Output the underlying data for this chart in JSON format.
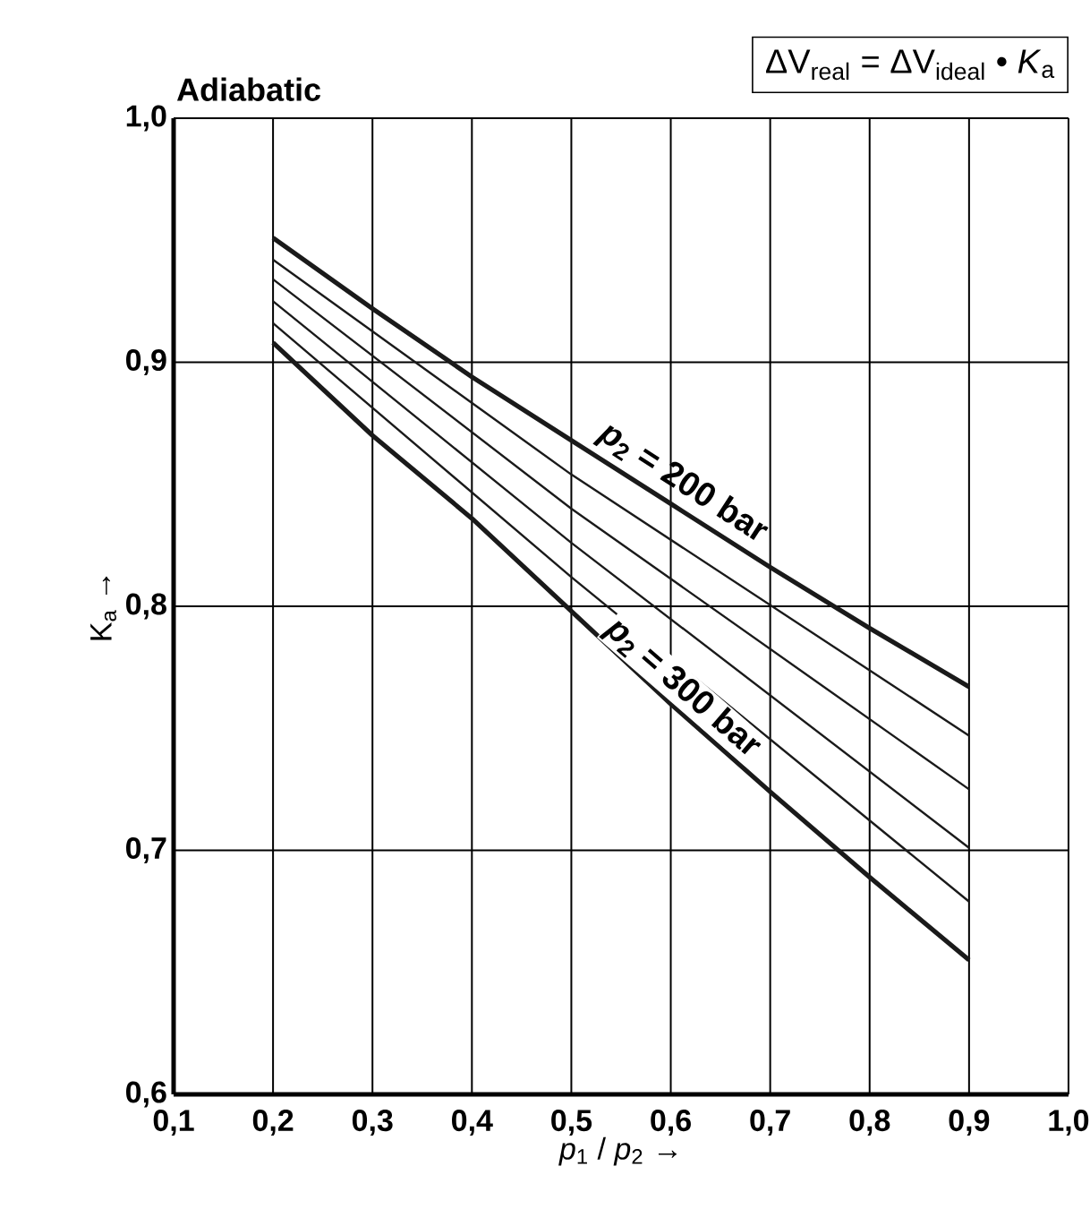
{
  "chart_data": {
    "type": "line",
    "title": "Adiabatic",
    "xlabel": "*p*$_{1}$ / *p*$_{2}$ →",
    "ylabel": "K$_{a}$ →",
    "annotations": [
      "ΔV$_{real}$ = ΔV$_{ideal}$ • *K*$_{a}$",
      {
        "text": "*p*$_{2}$ = 200 bar",
        "x": 0.6,
        "y": 0.842
      },
      {
        "text": "*p*$_{2}$ = 300 bar",
        "x": 0.6,
        "y": 0.76
      }
    ],
    "xlim": [
      0.1,
      1.0
    ],
    "ylim": [
      0.6,
      1.0
    ],
    "xticks": [
      {
        "value": 0.1,
        "label": "0,1"
      },
      {
        "value": 0.2,
        "label": "0,2"
      },
      {
        "value": 0.3,
        "label": "0,3"
      },
      {
        "value": 0.4,
        "label": "0,4"
      },
      {
        "value": 0.5,
        "label": "0,5"
      },
      {
        "value": 0.6,
        "label": "0,6"
      },
      {
        "value": 0.7,
        "label": "0,7"
      },
      {
        "value": 0.8,
        "label": "0,8"
      },
      {
        "value": 0.9,
        "label": "0,9"
      },
      {
        "value": 1.0,
        "label": "1,0"
      }
    ],
    "yticks": [
      {
        "value": 0.6,
        "label": "0,6"
      },
      {
        "value": 0.7,
        "label": "0,7"
      },
      {
        "value": 0.8,
        "label": "0,8"
      },
      {
        "value": 0.9,
        "label": "0,9"
      },
      {
        "value": 1.0,
        "label": "1,0"
      }
    ],
    "grid": true,
    "line_style": "solid",
    "marker": "none",
    "series": [
      {
        "color": "#1a1a1a",
        "x": [
          0.2,
          0.3,
          0.4,
          0.5,
          0.6,
          0.7,
          0.8,
          0.9
        ],
        "values": [
          0.951,
          0.922,
          0.894,
          0.868,
          0.842,
          0.816,
          0.791,
          0.767
        ]
      },
      {
        "color": "#1a1a1a",
        "x": [
          0.2,
          0.5,
          0.9
        ],
        "values": [
          0.942,
          0.854,
          0.747
        ]
      },
      {
        "color": "#1a1a1a",
        "x": [
          0.2,
          0.5,
          0.9
        ],
        "values": [
          0.934,
          0.84,
          0.725
        ]
      },
      {
        "color": "#1a1a1a",
        "x": [
          0.2,
          0.5,
          0.9
        ],
        "values": [
          0.925,
          0.826,
          0.701
        ]
      },
      {
        "color": "#1a1a1a",
        "x": [
          0.2,
          0.5,
          0.9
        ],
        "values": [
          0.916,
          0.812,
          0.679
        ]
      },
      {
        "color": "#1a1a1a",
        "x": [
          0.2,
          0.3,
          0.4,
          0.5,
          0.6,
          0.7,
          0.8,
          0.9
        ],
        "values": [
          0.908,
          0.87,
          0.836,
          0.798,
          0.76,
          0.724,
          0.689,
          0.655
        ]
      }
    ]
  }
}
